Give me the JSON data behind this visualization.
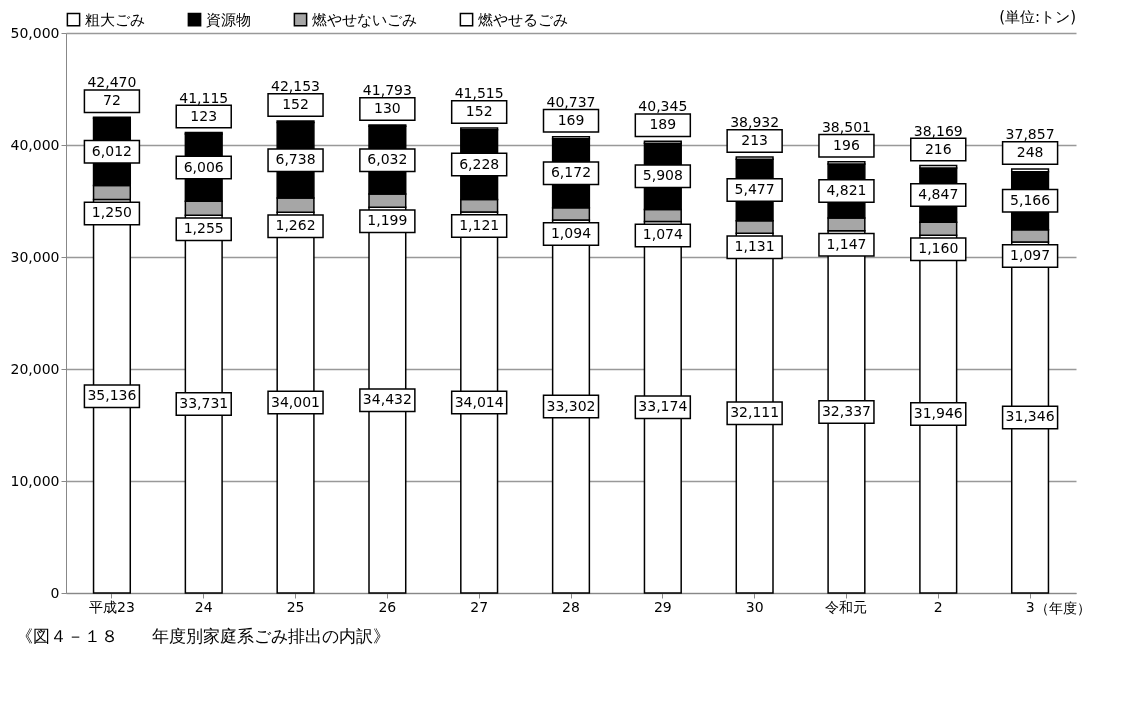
{
  "chart_data": {
    "type": "bar",
    "stacked": true,
    "title": "《図４－１８　　年度別家庭系ごみ排出の内訳》",
    "xlabel": "（年度）",
    "annotations": [
      "(単位:トン)"
    ],
    "categories": [
      "平成23",
      "24",
      "25",
      "26",
      "27",
      "28",
      "29",
      "30",
      "令和元",
      "2",
      "3"
    ],
    "series": [
      {
        "name": "燃やせるごみ",
        "color": "#ffffff",
        "values": [
          35136,
          33731,
          34001,
          34432,
          34014,
          33302,
          33174,
          32111,
          32337,
          31946,
          31346
        ],
        "value_labels": [
          "35,136",
          "33,731",
          "34,001",
          "34,432",
          "34,014",
          "33,302",
          "33,174",
          "32,111",
          "32,337",
          "31,946",
          "31,346"
        ]
      },
      {
        "name": "燃やせないごみ",
        "color": "#a6a6a6",
        "values": [
          1250,
          1255,
          1262,
          1199,
          1121,
          1094,
          1074,
          1131,
          1147,
          1160,
          1097
        ],
        "value_labels": [
          "1,250",
          "1,255",
          "1,262",
          "1,199",
          "1,121",
          "1,094",
          "1,074",
          "1,131",
          "1,147",
          "1,160",
          "1,097"
        ]
      },
      {
        "name": "資源物",
        "color": "#000000",
        "values": [
          6012,
          6006,
          6738,
          6032,
          6228,
          6172,
          5908,
          5477,
          4821,
          4847,
          5166
        ],
        "value_labels": [
          "6,012",
          "6,006",
          "6,738",
          "6,032",
          "6,228",
          "6,172",
          "5,908",
          "5,477",
          "4,821",
          "4,847",
          "5,166"
        ]
      },
      {
        "name": "粗大ごみ",
        "color": "#ffffff",
        "values": [
          72,
          123,
          152,
          130,
          152,
          169,
          189,
          213,
          196,
          216,
          248
        ],
        "value_labels": [
          "72",
          "123",
          "152",
          "130",
          "152",
          "169",
          "189",
          "213",
          "196",
          "216",
          "248"
        ]
      }
    ],
    "totals": [
      "42,470",
      "41,115",
      "42,153",
      "41,793",
      "41,515",
      "40,737",
      "40,345",
      "38,932",
      "38,501",
      "38,169",
      "37,857"
    ],
    "ylim": [
      0,
      50000
    ],
    "yticks": [
      {
        "value": 0,
        "label": "0"
      },
      {
        "value": 10000,
        "label": "10,000"
      },
      {
        "value": 20000,
        "label": "20,000"
      },
      {
        "value": 30000,
        "label": "30,000"
      },
      {
        "value": 40000,
        "label": "40,000"
      },
      {
        "value": 50000,
        "label": "50,000"
      }
    ],
    "grid": "y",
    "legend": "top left"
  }
}
